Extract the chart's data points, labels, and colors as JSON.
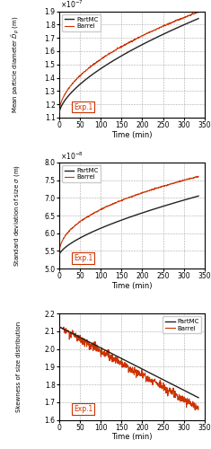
{
  "panel1": {
    "ylabel": "Mean particle diameter $\\bar{D}_p$ (m)",
    "ylim": [
      1.1e-07,
      1.9e-07
    ],
    "yticks": [
      1.1e-07,
      1.2e-07,
      1.3e-07,
      1.4e-07,
      1.5e-07,
      1.6e-07,
      1.7e-07,
      1.8e-07,
      1.9e-07
    ],
    "ytick_labels": [
      "1.1",
      "1.2",
      "1.3",
      "1.4",
      "1.5",
      "1.6",
      "1.7",
      "1.8",
      "1.9"
    ],
    "sci_exp": "$\\times10^{-7}$",
    "partmc_start": 1.13e-07,
    "partmc_end": 1.845e-07,
    "partmc_exp": 0.62,
    "barrel_start": 1.13e-07,
    "barrel_end": 1.895e-07,
    "barrel_exp": 0.52,
    "barrel_noise": 2.5e-10,
    "barrel_noise_seed": 42
  },
  "panel2": {
    "ylabel": "Standard deviation of size $\\sigma$ (m)",
    "ylim": [
      5e-08,
      8e-08
    ],
    "yticks": [
      5e-08,
      5.5e-08,
      6e-08,
      6.5e-08,
      7e-08,
      7.5e-08,
      8e-08
    ],
    "ytick_labels": [
      "5.0",
      "5.5",
      "6.0",
      "6.5",
      "7.0",
      "7.5",
      "8.0"
    ],
    "sci_exp": "$\\times10^{-8}$",
    "partmc_start": 5.38e-08,
    "partmc_end": 7.05e-08,
    "partmc_exp": 0.65,
    "barrel_start": 5.38e-08,
    "barrel_end": 7.6e-08,
    "barrel_exp": 0.45,
    "barrel_noise": 8e-11,
    "barrel_noise_seed": 43
  },
  "panel3": {
    "ylabel": "Skewness of size distribution",
    "ylim": [
      1.6,
      2.2
    ],
    "yticks": [
      1.6,
      1.7,
      1.8,
      1.9,
      2.0,
      2.1,
      2.2
    ],
    "ytick_labels": [
      "1.6",
      "1.7",
      "1.8",
      "1.9",
      "2.0",
      "2.1",
      "2.2"
    ],
    "partmc_start": 2.125,
    "partmc_end": 1.725,
    "barrel_start": 2.125,
    "barrel_end": 1.665,
    "barrel_noise": 0.012,
    "barrel_noise_seed": 44,
    "legend_loc": "upper right"
  },
  "xlim": [
    0,
    350
  ],
  "xticks": [
    0,
    50,
    100,
    150,
    200,
    250,
    300,
    350
  ],
  "xlabel": "Time (min)",
  "time_end": 335,
  "partmc_color": "#222222",
  "barrel_color": "#cc3300",
  "grid_color": "#aaaaaa",
  "grid_linestyle": "--",
  "legend_partmc": "PartMC",
  "legend_barrel": "Barrel",
  "exp_label": "Exp.1",
  "exp_box_color": "#cc3300",
  "legend_loc_12": "upper left"
}
